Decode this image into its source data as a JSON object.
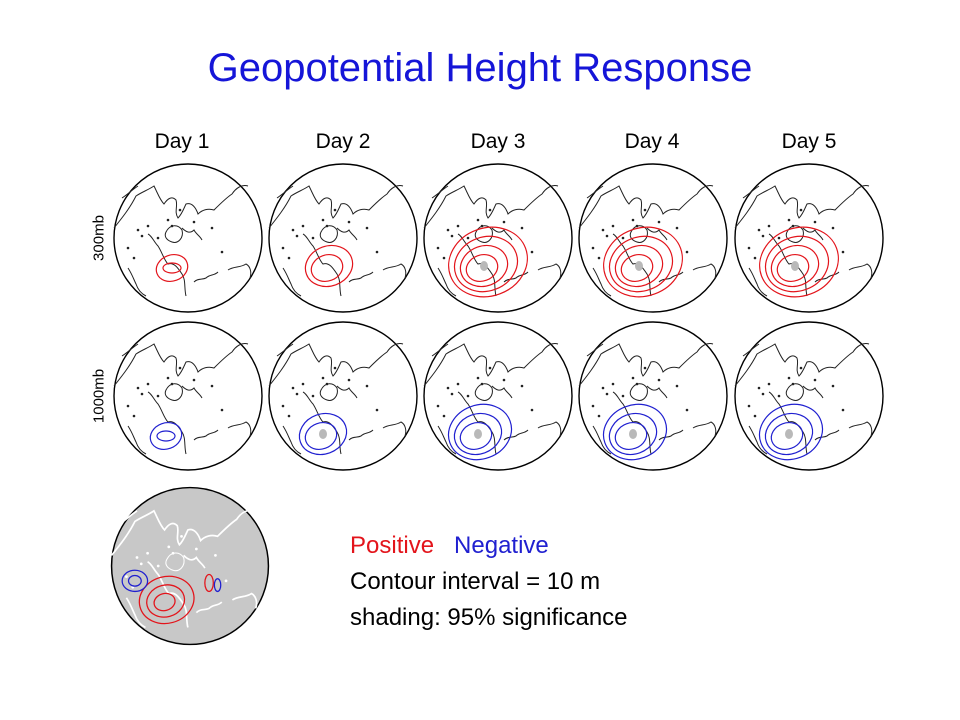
{
  "slide": {
    "title": "Geopotential Height Response"
  },
  "columns": [
    {
      "label": "Day 1"
    },
    {
      "label": "Day 2"
    },
    {
      "label": "Day 3"
    },
    {
      "label": "Day 4"
    },
    {
      "label": "Day 5"
    }
  ],
  "rows": [
    {
      "label": "300mb",
      "anomaly_sign": "positive"
    },
    {
      "label": "1000mb",
      "anomaly_sign": "negative"
    }
  ],
  "legend": {
    "positive_label": "Positive",
    "negative_label": "Negative",
    "contour_text": "Contour interval = 10 m",
    "shading_text": "shading: 95% significance"
  },
  "colors": {
    "title": "#1515d8",
    "positive": "#e3141b",
    "negative": "#2020d0",
    "shading": "#b9b9b9"
  }
}
